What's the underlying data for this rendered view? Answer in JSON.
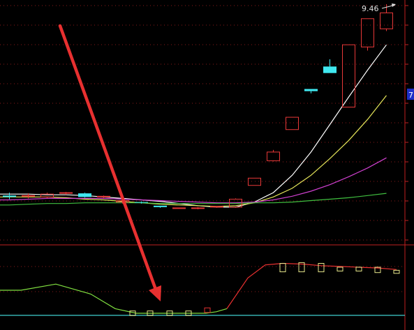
{
  "chart_data": [
    {
      "type": "candlestick",
      "title": "",
      "peak_label": "9.46",
      "axis_tag": "7",
      "grid": true,
      "candles": [
        {
          "o": 6.82,
          "h": 6.86,
          "l": 6.77,
          "c": 6.8
        },
        {
          "o": 6.81,
          "h": 6.85,
          "l": 6.78,
          "c": 6.82
        },
        {
          "o": 6.8,
          "h": 6.86,
          "l": 6.78,
          "c": 6.84
        },
        {
          "o": 6.85,
          "h": 6.87,
          "l": 6.83,
          "c": 6.86
        },
        {
          "o": 6.85,
          "h": 6.86,
          "l": 6.79,
          "c": 6.8
        },
        {
          "o": 6.8,
          "h": 6.82,
          "l": 6.78,
          "c": 6.81
        },
        {
          "o": 6.73,
          "h": 6.77,
          "l": 6.71,
          "c": 6.75
        },
        {
          "o": 6.73,
          "h": 6.74,
          "l": 6.71,
          "c": 6.72
        },
        {
          "o": 6.68,
          "h": 6.68,
          "l": 6.65,
          "c": 6.66
        },
        {
          "o": 6.65,
          "h": 6.65,
          "l": 6.64,
          "c": 6.65
        },
        {
          "o": 6.65,
          "h": 6.66,
          "l": 6.63,
          "c": 6.65
        },
        {
          "o": 6.66,
          "h": 6.67,
          "l": 6.65,
          "c": 6.67
        },
        {
          "o": 6.66,
          "h": 6.78,
          "l": 6.65,
          "c": 6.77
        },
        {
          "o": 6.96,
          "h": 7.06,
          "l": 6.96,
          "c": 7.06
        },
        {
          "o": 7.3,
          "h": 7.45,
          "l": 7.29,
          "c": 7.42
        },
        {
          "o": 7.73,
          "h": 7.9,
          "l": 7.73,
          "c": 7.9
        },
        {
          "o": 8.29,
          "h": 8.29,
          "l": 8.23,
          "c": 8.26
        },
        {
          "o": 8.6,
          "h": 8.7,
          "l": 8.51,
          "c": 8.51
        },
        {
          "o": 8.04,
          "h": 8.9,
          "l": 8.04,
          "c": 8.9
        },
        {
          "o": 8.87,
          "h": 9.26,
          "l": 8.82,
          "c": 9.26
        },
        {
          "o": 9.12,
          "h": 9.46,
          "l": 9.09,
          "c": 9.34
        }
      ],
      "moving_averages": [
        {
          "color": "#ffffff",
          "values": [
            6.84,
            6.84,
            6.83,
            6.83,
            6.82,
            6.8,
            6.78,
            6.76,
            6.74,
            6.71,
            6.68,
            6.66,
            6.66,
            6.73,
            6.86,
            7.1,
            7.42,
            7.8,
            8.18,
            8.55,
            8.9
          ]
        },
        {
          "color": "#e6e65a",
          "values": [
            6.8,
            6.8,
            6.8,
            6.79,
            6.77,
            6.76,
            6.74,
            6.72,
            6.7,
            6.69,
            6.68,
            6.67,
            6.68,
            6.72,
            6.8,
            6.92,
            7.1,
            7.33,
            7.58,
            7.87,
            8.2
          ]
        },
        {
          "color": "#d040d0",
          "values": [
            6.76,
            6.77,
            6.78,
            6.78,
            6.78,
            6.78,
            6.77,
            6.76,
            6.75,
            6.74,
            6.73,
            6.72,
            6.72,
            6.73,
            6.76,
            6.81,
            6.88,
            6.97,
            7.08,
            7.2,
            7.34
          ]
        },
        {
          "color": "#40c040",
          "values": [
            6.69,
            6.7,
            6.71,
            6.71,
            6.72,
            6.72,
            6.72,
            6.72,
            6.71,
            6.71,
            6.71,
            6.71,
            6.71,
            6.72,
            6.72,
            6.73,
            6.75,
            6.77,
            6.79,
            6.82,
            6.85
          ]
        }
      ]
    },
    {
      "type": "line",
      "title": "",
      "reference_color": "#40d0d0",
      "line": {
        "green": [
          40,
          40,
          48,
          35,
          16,
          10,
          10,
          10,
          10,
          10,
          12,
          16
        ],
        "red": [
          16,
          56,
          73,
          75,
          74,
          72,
          71,
          70,
          69,
          67
        ]
      },
      "boxes": [
        {
          "lo": 7,
          "hi": 13,
          "color": "#e6e68a"
        },
        {
          "lo": 7,
          "hi": 13,
          "color": "#e6e68a"
        },
        {
          "lo": 7,
          "hi": 13,
          "color": "#e6e68a"
        },
        {
          "lo": 7,
          "hi": 13,
          "color": "#e6e68a"
        },
        {
          "lo": 11,
          "hi": 17,
          "color": "#e03030"
        },
        {
          "lo": 64,
          "hi": 75,
          "color": "#e6e68a"
        },
        {
          "lo": 64,
          "hi": 76,
          "color": "#e6e68a"
        },
        {
          "lo": 64,
          "hi": 75,
          "color": "#e6e68a"
        },
        {
          "lo": 65,
          "hi": 70,
          "color": "#e6e68a"
        },
        {
          "lo": 65,
          "hi": 70,
          "color": "#e6e68a"
        },
        {
          "lo": 63,
          "hi": 70,
          "color": "#e6e68a"
        },
        {
          "lo": 62,
          "hi": 66,
          "color": "#e6e68a"
        }
      ]
    }
  ]
}
